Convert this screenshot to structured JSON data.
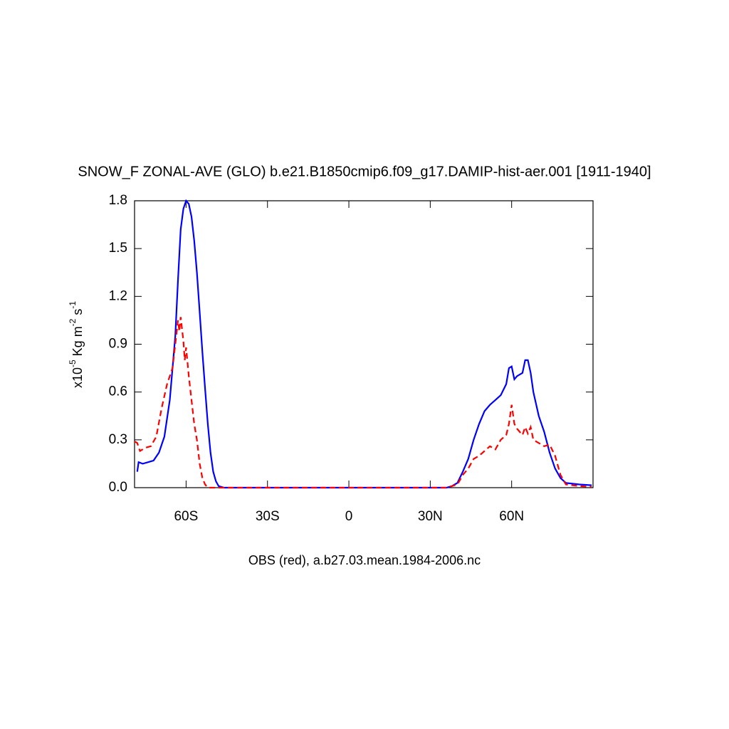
{
  "chart_data": {
    "type": "line",
    "title": "SNOW_F ZONAL-AVE (GLO) b.e21.B1850cmip6.f09_g17.DAMIP-hist-aer.001 [1911-1940]",
    "y_label": [
      "x10",
      "-5",
      " Kg m",
      "-2",
      " s",
      "-1"
    ],
    "caption": "OBS (red), a.b27.03.mean.1984-2006.nc",
    "xlim": [
      -79,
      90
    ],
    "ylim": [
      0,
      1.8
    ],
    "xticks": [
      {
        "value": -60,
        "label": "60S"
      },
      {
        "value": -30,
        "label": "30S"
      },
      0,
      {
        "value": 30,
        "label": "30N"
      },
      {
        "value": 60,
        "label": "60N"
      }
    ],
    "yticks": [
      {
        "value": 0,
        "label": "0.0"
      },
      0.3,
      0.6,
      0.9,
      1.2,
      1.5,
      1.8
    ],
    "series": [
      {
        "color": "#0000ff",
        "dash": "solid",
        "x": [
          -78,
          -77.5,
          -76,
          -74,
          -72,
          -70,
          -68,
          -66,
          -64,
          -63,
          -62,
          -61,
          -60,
          -59,
          -58,
          -57,
          -56,
          -55,
          -54,
          -53,
          -52,
          -51,
          -50,
          -49,
          -48,
          -46,
          0,
          36,
          38,
          40,
          42,
          44,
          46,
          48,
          50,
          52,
          54,
          56,
          58,
          59,
          60,
          61,
          62,
          64,
          65,
          66,
          67,
          68,
          70,
          72,
          74,
          76,
          78,
          80,
          85,
          89.5
        ],
        "values": [
          0.1,
          0.16,
          0.15,
          0.16,
          0.17,
          0.22,
          0.32,
          0.55,
          0.95,
          1.3,
          1.62,
          1.75,
          1.8,
          1.78,
          1.7,
          1.55,
          1.35,
          1.1,
          0.85,
          0.62,
          0.4,
          0.22,
          0.1,
          0.04,
          0.01,
          0,
          0,
          0,
          0.01,
          0.03,
          0.1,
          0.18,
          0.3,
          0.4,
          0.48,
          0.52,
          0.55,
          0.58,
          0.65,
          0.75,
          0.76,
          0.68,
          0.7,
          0.72,
          0.8,
          0.8,
          0.72,
          0.6,
          0.45,
          0.35,
          0.22,
          0.12,
          0.06,
          0.03,
          0.02,
          0.015
        ]
      },
      {
        "color": "#ff0000",
        "dash": "dashed",
        "x": [
          -79,
          -78,
          -77,
          -75,
          -73,
          -71,
          -69,
          -67,
          -65,
          -64,
          -63,
          -62.5,
          -62,
          -61,
          -60.5,
          -60,
          -59,
          -58,
          -57,
          -56,
          -55,
          -54,
          -53,
          -52,
          0,
          36,
          40,
          42,
          44,
          46,
          48,
          50,
          52,
          54,
          56,
          58,
          59,
          60,
          61,
          62,
          64,
          65,
          66,
          67,
          68,
          70,
          72,
          74,
          76,
          78,
          80,
          85,
          89.5
        ],
        "values": [
          0.29,
          0.28,
          0.23,
          0.25,
          0.26,
          0.32,
          0.5,
          0.65,
          0.75,
          0.9,
          1.05,
          0.98,
          1.07,
          0.92,
          0.8,
          0.88,
          0.7,
          0.55,
          0.4,
          0.3,
          0.15,
          0.06,
          0.02,
          0,
          0,
          0,
          0.02,
          0.08,
          0.12,
          0.18,
          0.2,
          0.23,
          0.26,
          0.24,
          0.3,
          0.33,
          0.4,
          0.52,
          0.4,
          0.37,
          0.33,
          0.38,
          0.34,
          0.38,
          0.3,
          0.28,
          0.26,
          0.27,
          0.2,
          0.08,
          0.02,
          0.01,
          0.005
        ]
      }
    ]
  }
}
